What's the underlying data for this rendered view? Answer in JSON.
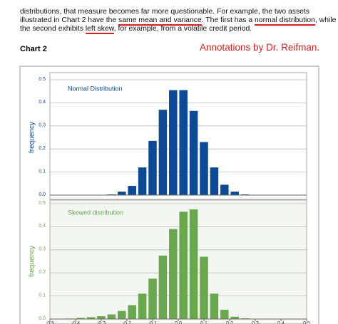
{
  "text_lines": [
    [
      {
        "text": "distributions, that measure becomes far more questionable. For example, the two assets",
        "underline": false
      }
    ],
    [
      {
        "text": "illustrated in Chart 2 have the ",
        "underline": false
      },
      {
        "text": "same mean and variance",
        "underline": true
      },
      {
        "text": ". The first has a ",
        "underline": false
      },
      {
        "text": "normal distribution",
        "underline": true
      },
      {
        "text": ", while",
        "underline": false
      }
    ],
    [
      {
        "text": "the second exhibits ",
        "underline": false
      },
      {
        "text": "left skew",
        "underline": true
      },
      {
        "text": ", for example, from a volatile credit period.",
        "underline": false
      }
    ]
  ],
  "heading": "Chart 2",
  "annotation": "Annotations by Dr. Reifman.",
  "chart_data": [
    {
      "type": "histogram",
      "series_name": "Normal Distribution",
      "ylabel": "frequency",
      "color": "#0d4a96",
      "bins": [
        -0.28,
        -0.24,
        -0.2,
        -0.16,
        -0.12,
        -0.08,
        -0.04,
        0,
        0.04,
        0.08,
        0.12,
        0.16,
        0.2,
        0.24,
        0.28
      ],
      "values": [
        0.003,
        0.015,
        0.04,
        0.12,
        0.235,
        0.37,
        0.455,
        0.455,
        0.365,
        0.23,
        0.12,
        0.045,
        0.015,
        0.003
      ],
      "xlim": [
        -0.5,
        0.5
      ],
      "ylim": [
        0,
        0.5
      ],
      "yticks": [
        {
          "value": 0,
          "label": "0.0"
        },
        0.1,
        0.2,
        0.3,
        0.4,
        0.5
      ],
      "grid": true
    },
    {
      "type": "histogram",
      "series_name": "Skewed distribution",
      "ylabel": "frequency",
      "color": "#6aa84f",
      "bins": [
        -0.44,
        -0.4,
        -0.36,
        -0.32,
        -0.28,
        -0.24,
        -0.2,
        -0.16,
        -0.12,
        -0.08,
        -0.04,
        0,
        0.04,
        0.08,
        0.12,
        0.16,
        0.2,
        0.24,
        0.28
      ],
      "values": [
        0.002,
        0.005,
        0.008,
        0.012,
        0.02,
        0.035,
        0.06,
        0.11,
        0.175,
        0.275,
        0.39,
        0.465,
        0.475,
        0.27,
        0.11,
        0.04,
        0.01,
        0.003
      ],
      "xlim": [
        -0.5,
        0.5
      ],
      "ylim": [
        0,
        0.5
      ],
      "xticks": [
        -0.5,
        -0.4,
        -0.3,
        -0.2,
        -0.1,
        {
          "value": 0,
          "label": "0.0"
        },
        0.1,
        0.2,
        0.3,
        0.4,
        0.5
      ],
      "yticks": [
        {
          "value": 0,
          "label": "0.0"
        },
        0.1,
        0.2,
        0.3,
        0.4,
        0.5
      ],
      "grid": true
    }
  ]
}
